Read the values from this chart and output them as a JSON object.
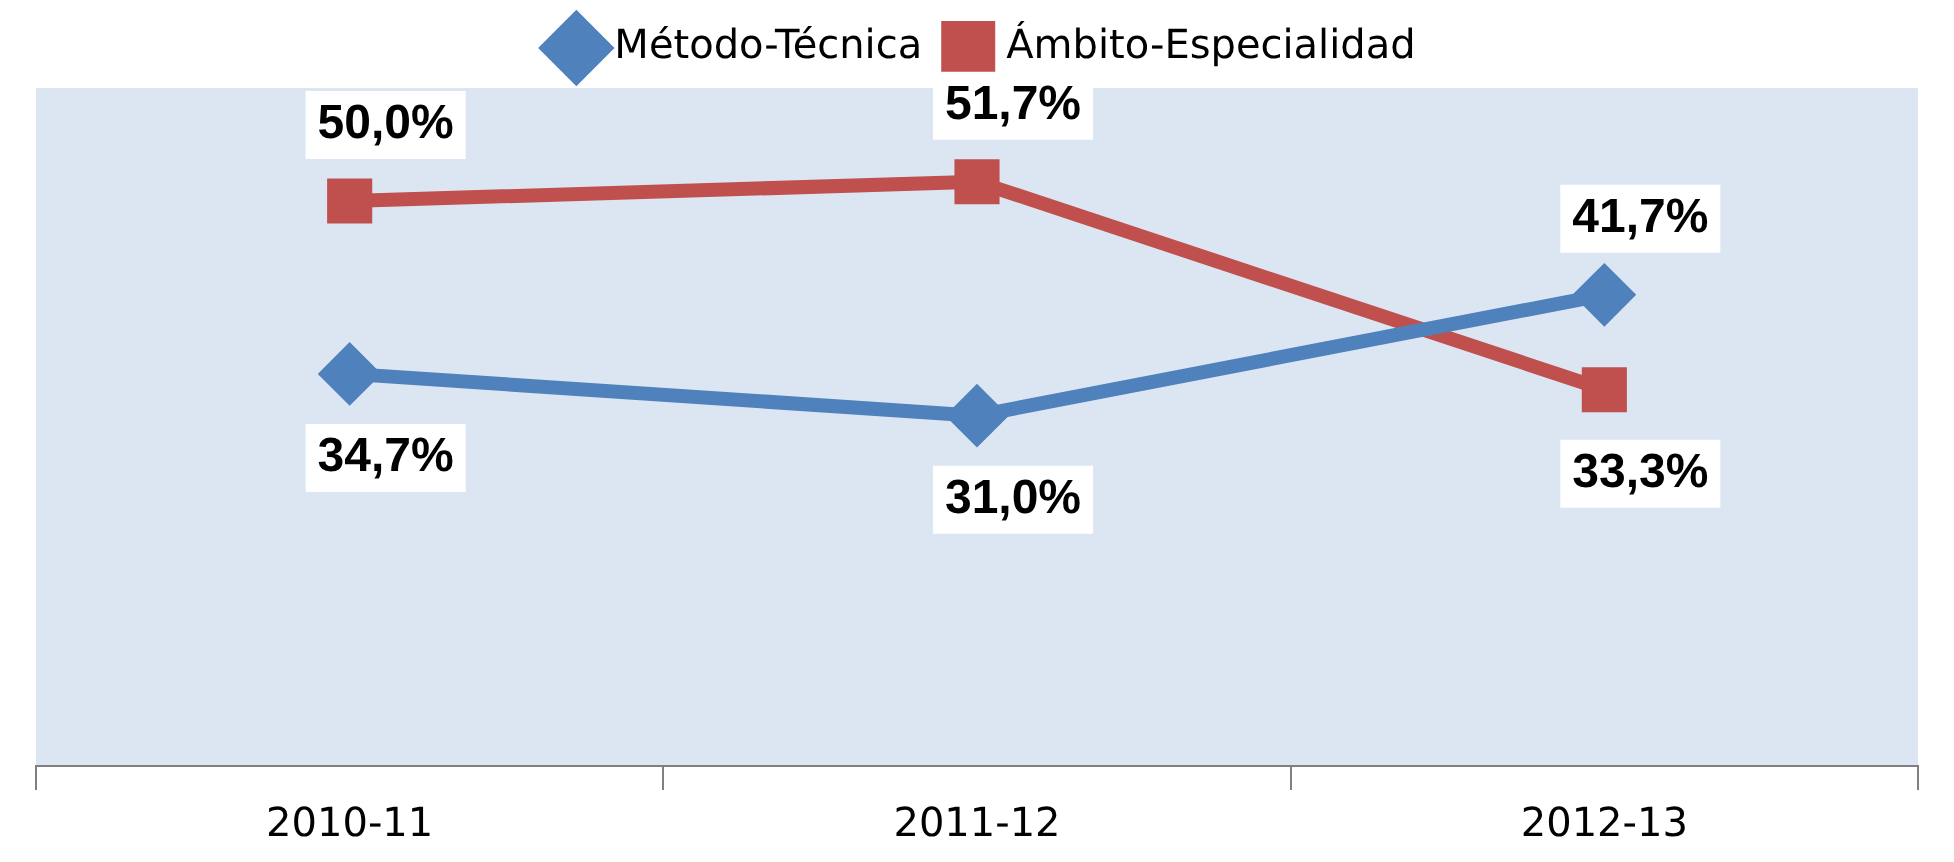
{
  "chart_data": {
    "type": "line",
    "categories": [
      "2010-11",
      "2011-12",
      "2012-13"
    ],
    "series": [
      {
        "name": "Método-Técnica",
        "color": "#4f81bd",
        "marker": "diamond",
        "values": [
          34.7,
          31.0,
          41.7
        ],
        "value_labels": [
          "34,7%",
          "31,0%",
          "41,7%"
        ]
      },
      {
        "name": "Ámbito-Especialidad",
        "color": "#c0504d",
        "marker": "square",
        "values": [
          50.0,
          51.7,
          33.3
        ],
        "value_labels": [
          "50,0%",
          "51,7%",
          "33,3%"
        ]
      }
    ],
    "ylim": [
      0,
      60
    ],
    "tick_labels": "x",
    "grid": false,
    "legend": "top",
    "line_style": "solid"
  }
}
